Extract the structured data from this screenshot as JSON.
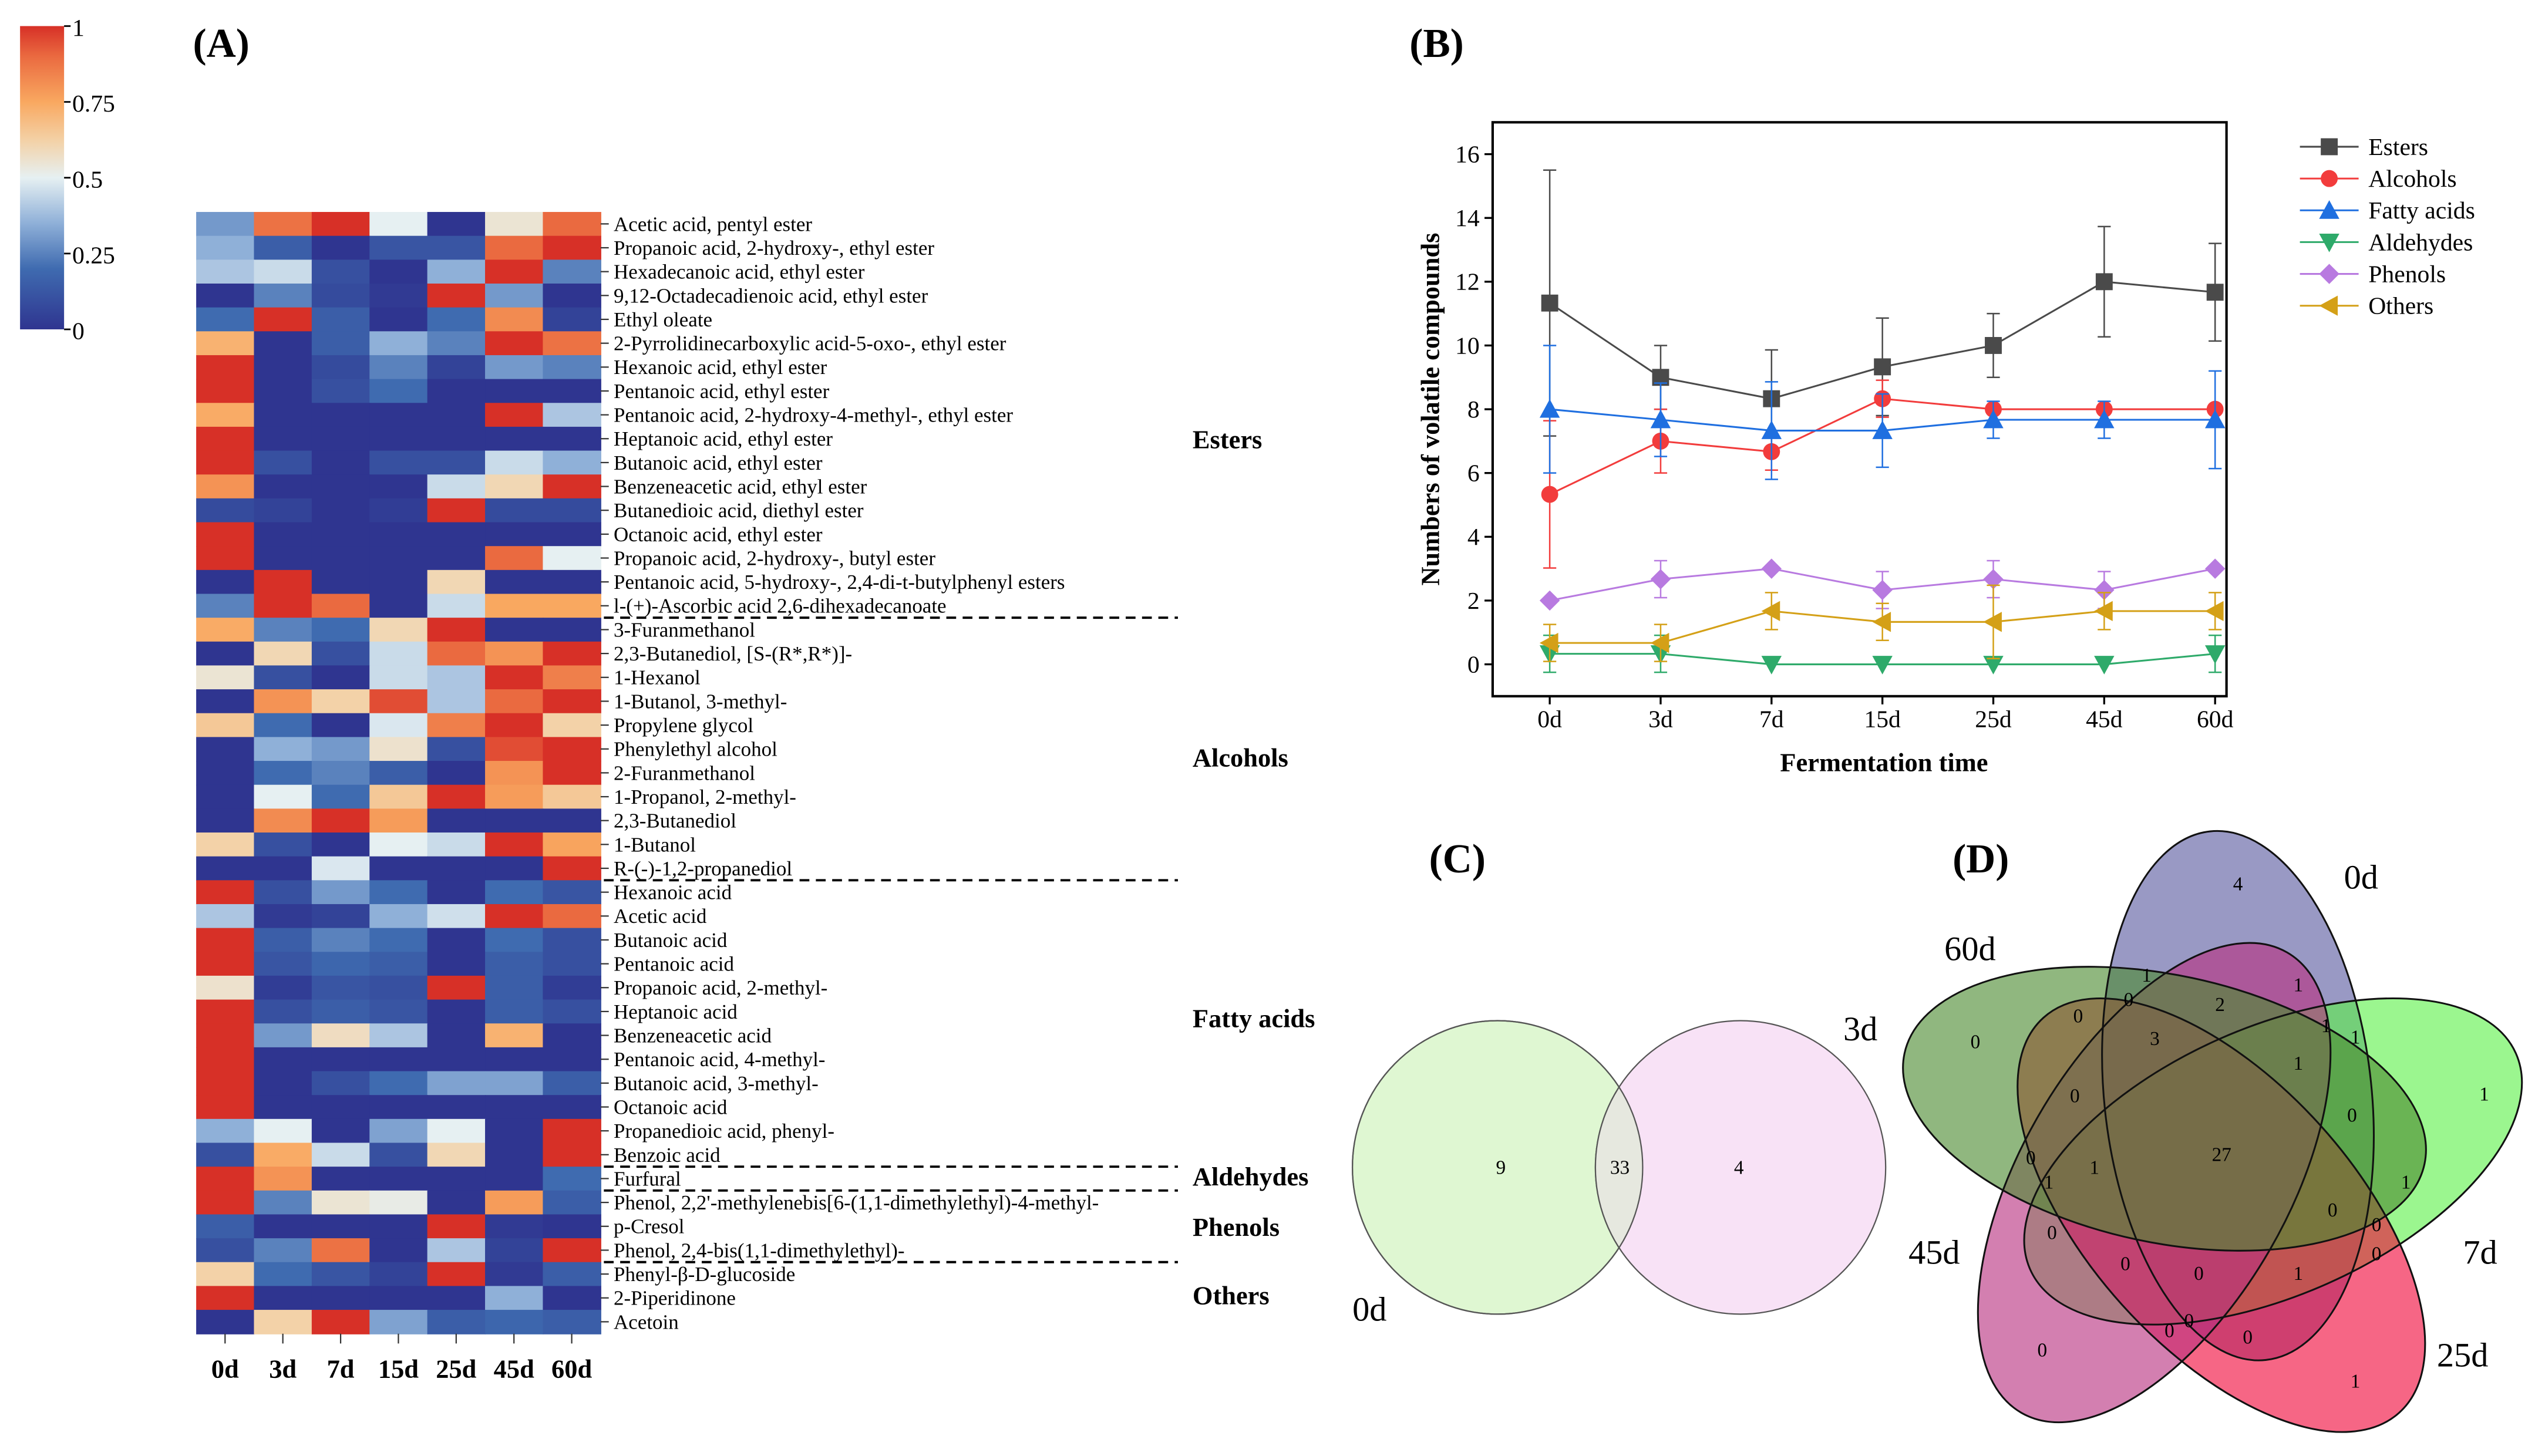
{
  "panels": {
    "a": "(A)",
    "b": "(B)",
    "c": "(C)",
    "d": "(D)"
  },
  "heatmap": {
    "colorbar_ticks": [
      "1",
      "0.75",
      "0.5",
      "0.25",
      "0"
    ],
    "colorbar_values": [
      1,
      0.75,
      0.5,
      0.25,
      0
    ],
    "columns": [
      "0d",
      "3d",
      "7d",
      "15d",
      "25d",
      "45d",
      "60d"
    ],
    "groups": [
      {
        "name": "Esters",
        "count": 17
      },
      {
        "name": "Alcohols",
        "count": 11
      },
      {
        "name": "Fatty acids",
        "count": 12
      },
      {
        "name": "Aldehydes",
        "count": 1
      },
      {
        "name": "Phenols",
        "count": 3
      },
      {
        "name": "Others",
        "count": 3
      }
    ],
    "rows": [
      {
        "name": "Acetic acid, pentyl ester",
        "values": [
          0.3,
          0.88,
          1,
          0.5,
          0,
          0.55,
          0.9
        ]
      },
      {
        "name": "Propanoic acid, 2-hydroxy-, ethyl ester",
        "values": [
          0.35,
          0.15,
          0,
          0.12,
          0.12,
          0.9,
          1
        ]
      },
      {
        "name": "Hexadecanoic acid, ethyl ester",
        "values": [
          0.4,
          0.45,
          0.1,
          0,
          0.35,
          1,
          0.25
        ]
      },
      {
        "name": "9,12-Octadecadienoic acid, ethyl ester",
        "values": [
          0,
          0.25,
          0.08,
          0.02,
          1,
          0.3,
          0
        ]
      },
      {
        "name": "Ethyl oleate",
        "values": [
          0.2,
          1,
          0.15,
          0,
          0.2,
          0.82,
          0.05
        ]
      },
      {
        "name": "2-Pyrrolidinecarboxylic acid-5-oxo-, ethyl ester",
        "values": [
          0.72,
          0,
          0.15,
          0.35,
          0.25,
          1,
          0.88
        ]
      },
      {
        "name": "Hexanoic acid, ethyl ester",
        "values": [
          1,
          0,
          0.08,
          0.25,
          0.05,
          0.3,
          0.25
        ]
      },
      {
        "name": "Pentanoic acid, ethyl ester",
        "values": [
          1,
          0,
          0.1,
          0.2,
          0,
          0,
          0
        ]
      },
      {
        "name": "Pentanoic acid, 2-hydroxy-4-methyl-, ethyl ester",
        "values": [
          0.74,
          0,
          0,
          0,
          0,
          1,
          0.4
        ]
      },
      {
        "name": "Heptanoic acid, ethyl ester",
        "values": [
          1,
          0,
          0,
          0,
          0,
          0,
          0
        ]
      },
      {
        "name": "Butanoic acid, ethyl ester",
        "values": [
          1,
          0.1,
          0,
          0.1,
          0.1,
          0.45,
          0.35
        ]
      },
      {
        "name": "Benzeneacetic acid, ethyl ester",
        "values": [
          0.8,
          0,
          0,
          0,
          0.45,
          0.6,
          1
        ]
      },
      {
        "name": "Butanedioic acid, diethyl ester",
        "values": [
          0.08,
          0.05,
          0,
          0.03,
          1,
          0.08,
          0.08
        ]
      },
      {
        "name": "Octanoic acid, ethyl ester",
        "values": [
          1,
          0,
          0,
          0,
          0,
          0,
          0
        ]
      },
      {
        "name": "Propanoic acid, 2-hydroxy-, butyl ester",
        "values": [
          1,
          0,
          0,
          0,
          0,
          0.9,
          0.5
        ]
      },
      {
        "name": "Pentanoic acid, 5-hydroxy-, 2,4-di-t-butylphenyl esters",
        "values": [
          0,
          1,
          0,
          0,
          0.6,
          0,
          0
        ]
      },
      {
        "name": "l-(+)-Ascorbic acid 2,6-dihexadecanoate",
        "values": [
          0.25,
          1,
          0.9,
          0,
          0.45,
          0.75,
          0.75
        ]
      },
      {
        "name": "3-Furanmethanol",
        "values": [
          0.74,
          0.25,
          0.2,
          0.6,
          1,
          0,
          0
        ]
      },
      {
        "name": "2,3-Butanediol, [S-(R*,R*)]-",
        "values": [
          0,
          0.6,
          0.1,
          0.45,
          0.9,
          0.8,
          1
        ]
      },
      {
        "name": "1-Hexanol",
        "values": [
          0.55,
          0.1,
          0,
          0.45,
          0.4,
          1,
          0.85
        ]
      },
      {
        "name": "1-Butanol, 3-methyl-",
        "values": [
          0,
          0.8,
          0.62,
          0.95,
          0.4,
          0.9,
          1
        ]
      },
      {
        "name": "Propylene glycol",
        "values": [
          0.65,
          0.2,
          0,
          0.48,
          0.85,
          1,
          0.62
        ]
      },
      {
        "name": "Phenylethyl alcohol",
        "values": [
          0,
          0.35,
          0.3,
          0.56,
          0.1,
          0.95,
          1
        ]
      },
      {
        "name": "2-Furanmethanol",
        "values": [
          0,
          0.2,
          0.25,
          0.15,
          0,
          0.8,
          1
        ]
      },
      {
        "name": "1-Propanol, 2-methyl-",
        "values": [
          0,
          0.5,
          0.2,
          0.65,
          1,
          0.78,
          0.65
        ]
      },
      {
        "name": "2,3-Butanediol",
        "values": [
          0,
          0.82,
          1,
          0.78,
          0,
          0,
          0
        ]
      },
      {
        "name": "1-Butanol",
        "values": [
          0.62,
          0.1,
          0,
          0.5,
          0.45,
          1,
          0.76
        ]
      },
      {
        "name": "R-(-)-1,2-propanediol",
        "values": [
          0,
          0,
          0.48,
          0,
          0,
          0,
          1
        ]
      },
      {
        "name": "Hexanoic acid",
        "values": [
          1,
          0.1,
          0.3,
          0.2,
          0,
          0.2,
          0.12
        ]
      },
      {
        "name": "Acetic acid",
        "values": [
          0.4,
          0.02,
          0.05,
          0.35,
          0.46,
          1,
          0.9
        ]
      },
      {
        "name": "Butanoic acid",
        "values": [
          1,
          0.15,
          0.25,
          0.2,
          0,
          0.2,
          0.1
        ]
      },
      {
        "name": "Pentanoic acid",
        "values": [
          1,
          0.12,
          0.18,
          0.15,
          0,
          0.15,
          0.1
        ]
      },
      {
        "name": "Propanoic acid, 2-methyl-",
        "values": [
          0.56,
          0.03,
          0.12,
          0.1,
          1,
          0.15,
          0.03
        ]
      },
      {
        "name": "Heptanoic acid",
        "values": [
          1,
          0.1,
          0.15,
          0.12,
          0,
          0.15,
          0.1
        ]
      },
      {
        "name": "Benzeneacetic acid",
        "values": [
          1,
          0.3,
          0.58,
          0.4,
          0,
          0.72,
          0
        ]
      },
      {
        "name": "Pentanoic acid, 4-methyl-",
        "values": [
          1,
          0,
          0,
          0,
          0,
          0,
          0
        ]
      },
      {
        "name": "Butanoic acid, 3-methyl-",
        "values": [
          1,
          0,
          0.1,
          0.2,
          0.32,
          0.32,
          0.15
        ]
      },
      {
        "name": "Octanoic acid",
        "values": [
          1,
          0,
          0,
          0,
          0,
          0,
          0
        ]
      },
      {
        "name": "Propanedioic acid, phenyl-",
        "values": [
          0.35,
          0.5,
          0,
          0.32,
          0.5,
          0,
          1
        ]
      },
      {
        "name": "Benzoic acid",
        "values": [
          0.1,
          0.74,
          0.45,
          0.1,
          0.6,
          0,
          1
        ]
      },
      {
        "name": "Furfural",
        "values": [
          1,
          0.8,
          0,
          0,
          0,
          0,
          0.2
        ]
      },
      {
        "name": "Phenol, 2,2'-methylenebis[6-(1,1-dimethylethyl)-4-methyl-",
        "values": [
          1,
          0.25,
          0.55,
          0.52,
          0,
          0.78,
          0.15
        ]
      },
      {
        "name": "p-Cresol",
        "values": [
          0.15,
          0,
          0,
          0,
          1,
          0.02,
          0
        ]
      },
      {
        "name": "Phenol, 2,4-bis(1,1-dimethylethyl)-",
        "values": [
          0.1,
          0.25,
          0.88,
          0,
          0.4,
          0.05,
          1
        ]
      },
      {
        "name": "Phenyl-β-D-glucoside",
        "values": [
          0.62,
          0.2,
          0.12,
          0.05,
          1,
          0.02,
          0.15
        ]
      },
      {
        "name": "2-Piperidinone",
        "values": [
          1,
          0,
          0,
          0,
          0,
          0.35,
          0
        ]
      },
      {
        "name": "Acetoin",
        "values": [
          0,
          0.62,
          1,
          0.32,
          0.15,
          0.18,
          0.15
        ]
      }
    ]
  },
  "chart_data": [
    {
      "type": "line",
      "title": "",
      "xlabel": "Fermentation time",
      "ylabel": "Numbers of volatile compounds",
      "categories": [
        "0d",
        "3d",
        "7d",
        "15d",
        "25d",
        "45d",
        "60d"
      ],
      "ylim": [
        -1,
        17
      ],
      "yticks": [
        0,
        2,
        4,
        6,
        8,
        10,
        12,
        14,
        16
      ],
      "legend_position": "right",
      "series": [
        {
          "name": "Esters",
          "marker": "square",
          "color": "#4a4a4a",
          "values": [
            11.33,
            9,
            8.33,
            9.33,
            10,
            12,
            11.67
          ],
          "errors": [
            4.17,
            1,
            1.53,
            1.53,
            1,
            1.73,
            1.53
          ]
        },
        {
          "name": "Alcohols",
          "marker": "circle",
          "color": "#f23c3c",
          "values": [
            5.33,
            7,
            6.67,
            8.33,
            8,
            8,
            8
          ],
          "errors": [
            2.31,
            1,
            0.58,
            0.58,
            0,
            0,
            0
          ]
        },
        {
          "name": "Fatty acids",
          "marker": "triangle-up",
          "color": "#1f6fe0",
          "values": [
            8,
            7.67,
            7.33,
            7.33,
            7.67,
            7.67,
            7.67
          ],
          "errors": [
            2,
            1.15,
            1.53,
            1.15,
            0.58,
            0.58,
            1.53
          ]
        },
        {
          "name": "Aldehydes",
          "marker": "triangle-down",
          "color": "#2eaa6a",
          "values": [
            0.33,
            0.33,
            0,
            0,
            0,
            0,
            0.33
          ],
          "errors": [
            0.58,
            0.58,
            0,
            0,
            0,
            0,
            0.58
          ]
        },
        {
          "name": "Phenols",
          "marker": "diamond",
          "color": "#b87ae0",
          "values": [
            2,
            2.67,
            3,
            2.33,
            2.67,
            2.33,
            3
          ],
          "errors": [
            0,
            0.58,
            0,
            0.58,
            0.58,
            0.58,
            0
          ]
        },
        {
          "name": "Others",
          "marker": "triangle-left",
          "color": "#d4a017",
          "values": [
            0.67,
            0.67,
            1.67,
            1.33,
            1.33,
            1.67,
            1.67
          ],
          "errors": [
            0.58,
            0.58,
            0.58,
            0.58,
            1.15,
            0.58,
            0.58
          ]
        }
      ]
    },
    {
      "type": "venn",
      "sets": [
        {
          "name": "0d",
          "color": "#dff7d2"
        },
        {
          "name": "3d",
          "color": "#f7dff5"
        }
      ],
      "regions": {
        "only_0d": 9,
        "both": 33,
        "only_3d": 4
      }
    },
    {
      "type": "venn",
      "sets": [
        {
          "name": "0d",
          "color": "#5a5aa0"
        },
        {
          "name": "7d",
          "color": "#5ef04a"
        },
        {
          "name": "25d",
          "color": "#f0083a"
        },
        {
          "name": "45d",
          "color": "#b8307f"
        },
        {
          "name": "60d",
          "color": "#4c8a30"
        }
      ],
      "region_values": [
        4,
        1,
        1,
        0,
        2,
        0,
        0,
        3,
        1,
        1,
        1,
        1,
        0,
        0,
        27,
        0,
        1,
        1,
        1,
        0,
        0,
        0,
        0,
        0,
        0,
        1,
        0,
        0,
        0,
        0,
        1
      ]
    }
  ]
}
